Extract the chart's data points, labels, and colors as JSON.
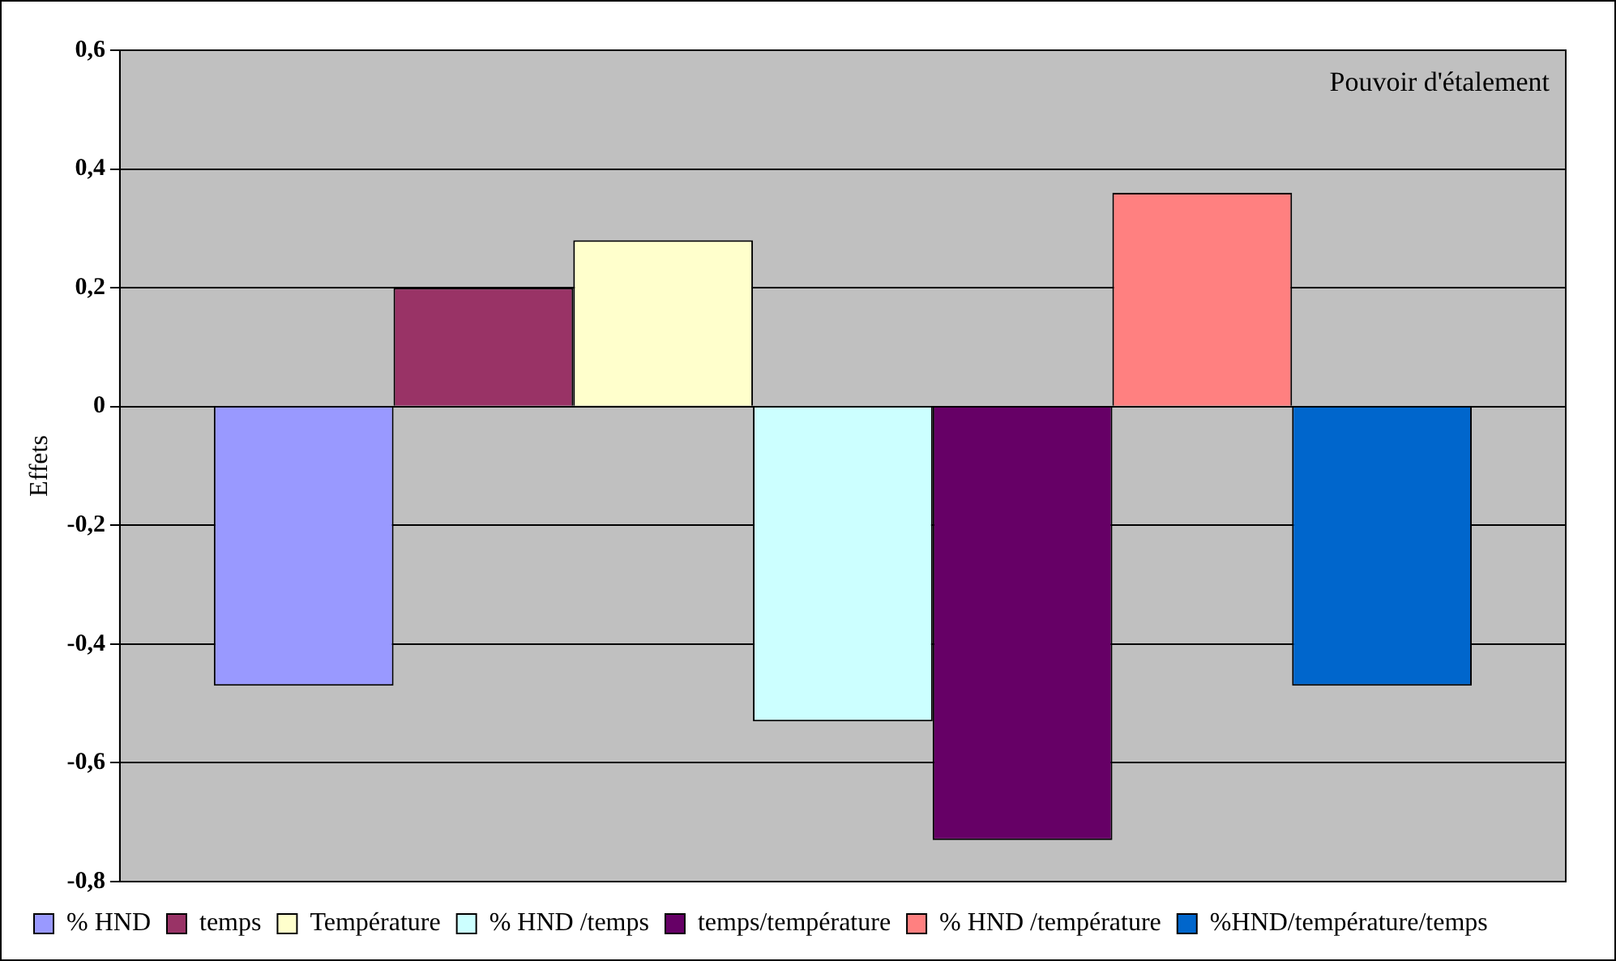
{
  "chart_data": {
    "type": "bar",
    "ylabel": "Effets",
    "annotations": [
      "Pouvoir d'étalement"
    ],
    "categories": [
      null
    ],
    "series": [
      {
        "name": "% HND",
        "color": "#9999ff",
        "values": [
          -0.47
        ]
      },
      {
        "name": "temps",
        "color": "#993366",
        "values": [
          0.2
        ]
      },
      {
        "name": "Température",
        "color": "#ffffcc",
        "values": [
          0.28
        ]
      },
      {
        "name": "% HND /temps",
        "color": "#ccffff",
        "values": [
          -0.53
        ]
      },
      {
        "name": "temps/température",
        "color": "#660066",
        "values": [
          -0.73
        ]
      },
      {
        "name": "% HND /température",
        "color": "#ff8080",
        "values": [
          0.36
        ]
      },
      {
        "name": "%HND/température/temps",
        "color": "#0066cc",
        "values": [
          -0.47
        ]
      }
    ],
    "ylim": [
      -0.8,
      0.6
    ],
    "yticks": [
      {
        "value": -0.8,
        "label": "-0,8"
      },
      {
        "value": -0.6,
        "label": "-0,6"
      },
      {
        "value": -0.4,
        "label": "-0,4"
      },
      {
        "value": -0.2,
        "label": "-0,2"
      },
      {
        "value": 0,
        "label": "0"
      },
      {
        "value": 0.2,
        "label": "0,2"
      },
      {
        "value": 0.4,
        "label": "0,4"
      },
      {
        "value": 0.6,
        "label": "0,6"
      }
    ],
    "grid": "y",
    "legend": "bottom"
  }
}
